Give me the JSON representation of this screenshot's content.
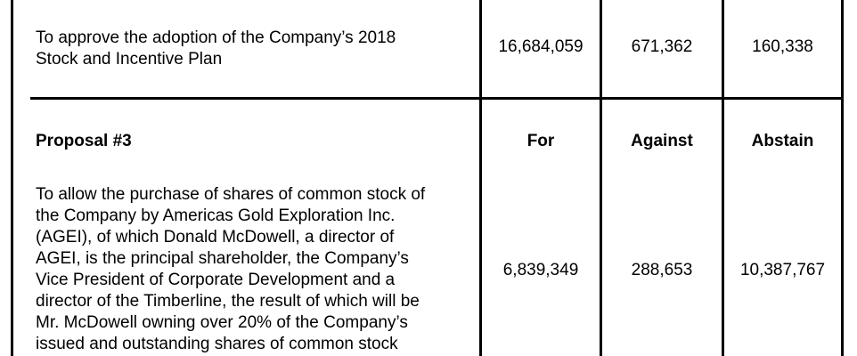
{
  "row1": {
    "description": "To approve the adoption of the Company’s 2018\nStock and Incentive Plan",
    "for": "16,684,059",
    "against": "671,362",
    "abstain": "160,338"
  },
  "proposal3": {
    "title": "Proposal #3",
    "header_for": "For",
    "header_against": "Against",
    "header_abstain": "Abstain",
    "description": "To allow the purchase of shares of common stock of\nthe Company by Americas Gold Exploration Inc.\n(AGEI), of  which  Donald McDowell, a director of\nAGEI, is the principal shareholder, the Company’s\nVice  President of Corporate Development and a\ndirector of the Timberline, the result of which will be\nMr. McDowell owning over 20% of the Company’s\nissued and outstanding shares of common stock",
    "for": "6,839,349",
    "against": "288,653",
    "abstain": "10,387,767"
  }
}
